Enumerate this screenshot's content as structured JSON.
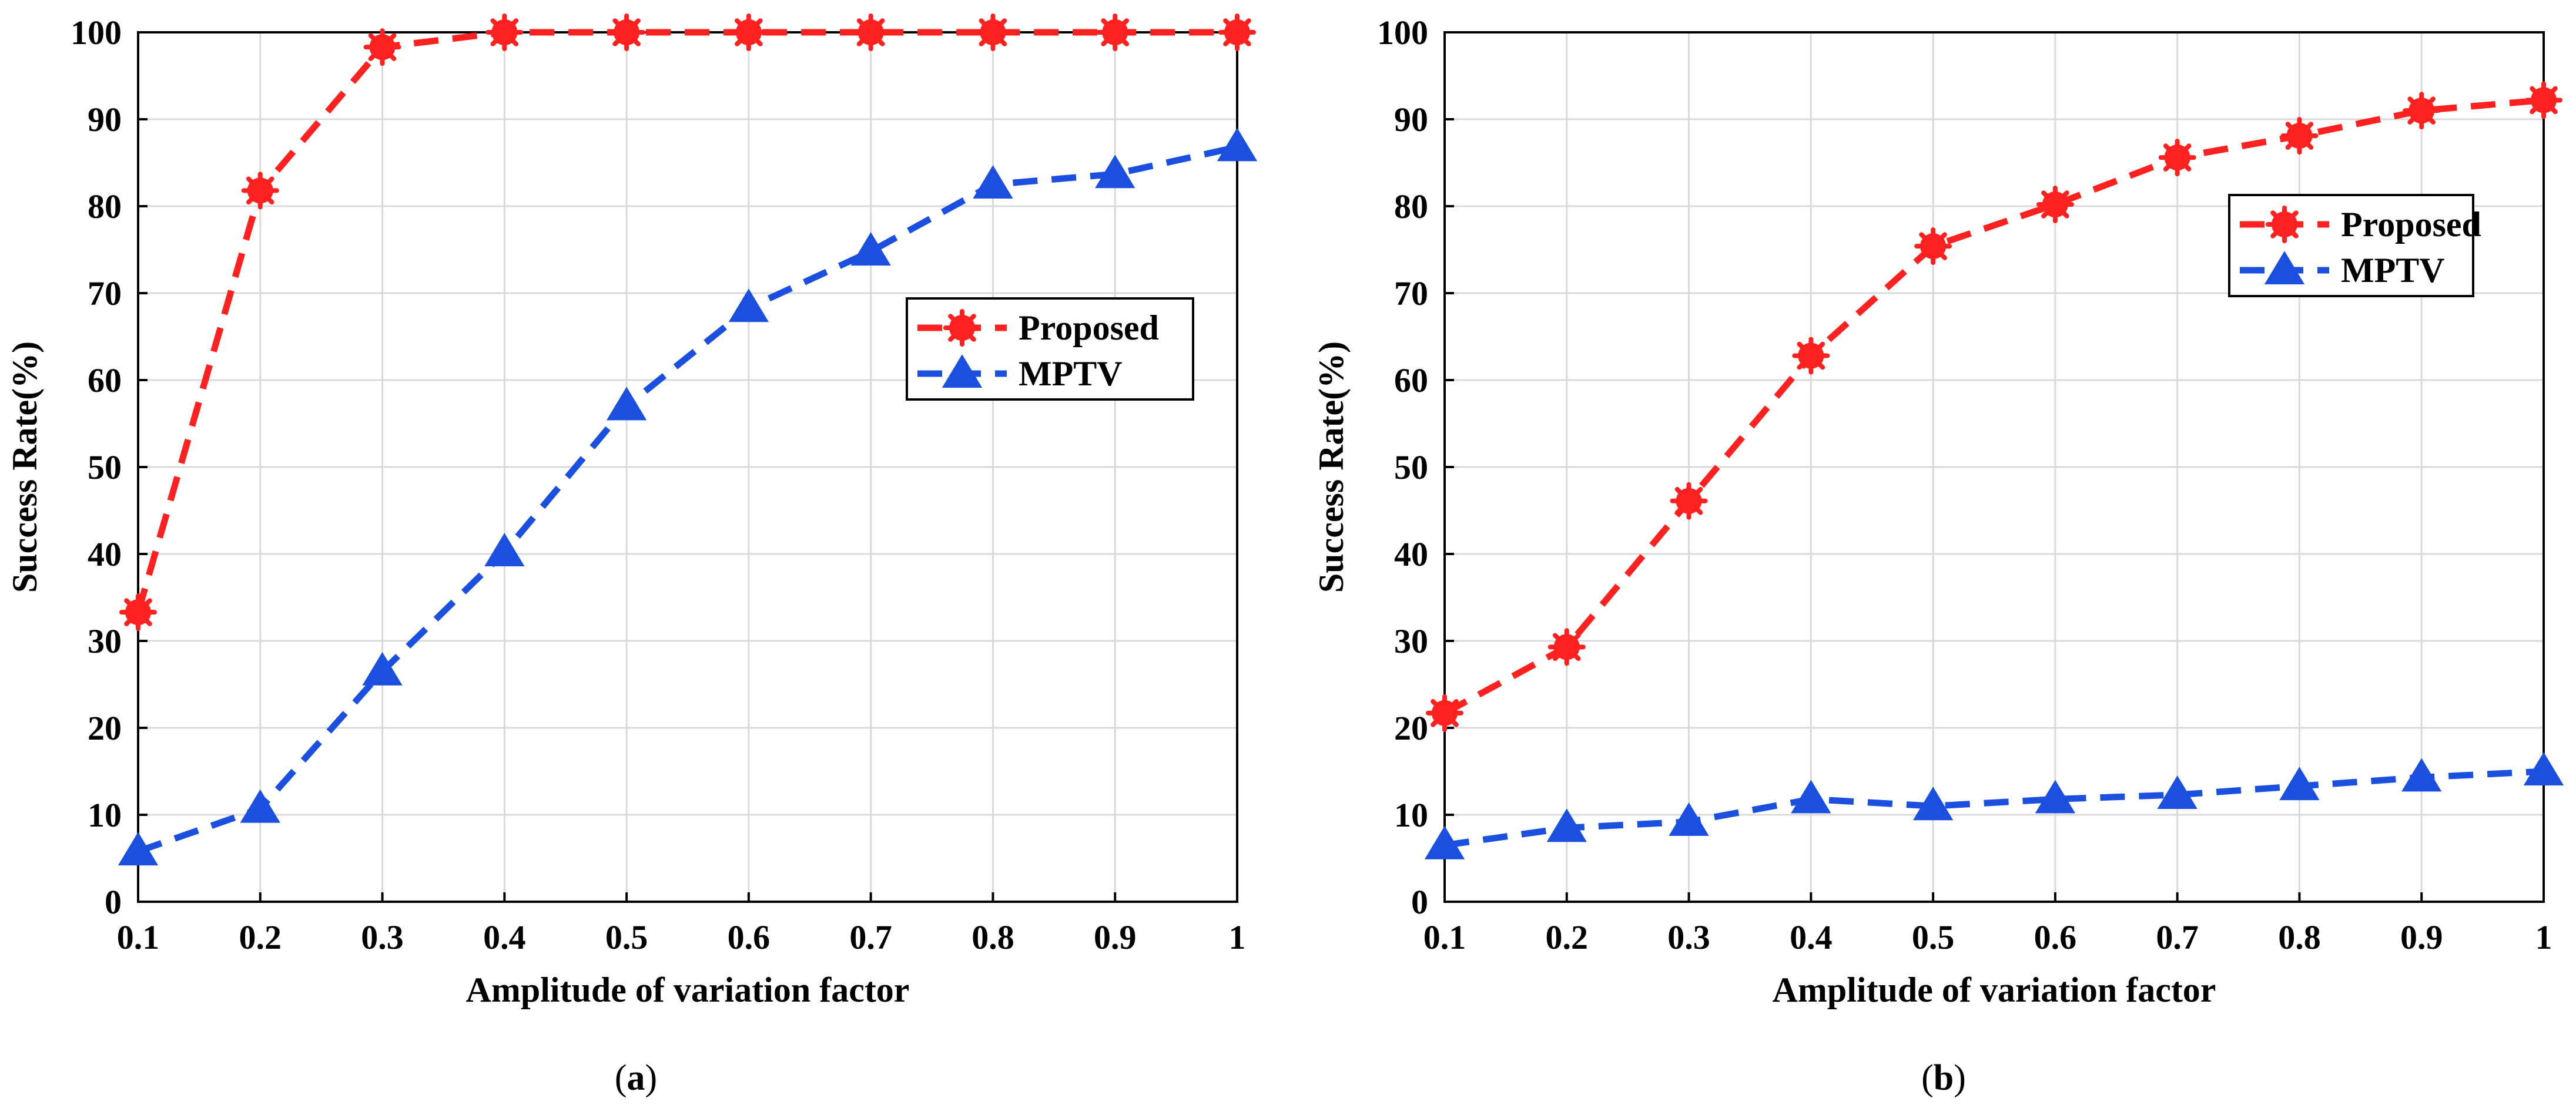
{
  "chart_data": [
    {
      "type": "line",
      "panel_label": "a",
      "caption_open": "(",
      "caption_close": ")",
      "xlabel": "Amplitude of variation factor",
      "ylabel": "Success Rate(%)",
      "x": [
        0.1,
        0.2,
        0.3,
        0.4,
        0.5,
        0.6,
        0.7,
        0.8,
        0.9,
        1
      ],
      "x_tick_labels": [
        "0.1",
        "0.2",
        "0.3",
        "0.4",
        "0.5",
        "0.6",
        "0.7",
        "0.8",
        "0.9",
        "1"
      ],
      "y_ticks": [
        0,
        10,
        20,
        30,
        40,
        50,
        60,
        70,
        80,
        90,
        100
      ],
      "xlim": [
        0.1,
        1
      ],
      "ylim": [
        0,
        100
      ],
      "grid": true,
      "legend_position": "right-middle",
      "series": [
        {
          "name": "Proposed",
          "color": "#ff2020",
          "line_style": "dashed",
          "marker": "asterisk-circle",
          "values": [
            33.3,
            81.8,
            98.3,
            100,
            100,
            100,
            100,
            100,
            100,
            100
          ]
        },
        {
          "name": "MPTV",
          "color": "#1a4fe0",
          "line_style": "dashed",
          "marker": "triangle",
          "values": [
            5.8,
            10.7,
            26.5,
            40.2,
            57.0,
            68.3,
            74.8,
            82.5,
            83.7,
            86.8
          ]
        }
      ]
    },
    {
      "type": "line",
      "panel_label": "b",
      "caption_open": "(",
      "caption_close": ")",
      "xlabel": "Amplitude of variation factor",
      "ylabel": "Success Rate(%)",
      "x": [
        0.1,
        0.2,
        0.3,
        0.4,
        0.5,
        0.6,
        0.7,
        0.8,
        0.9,
        1
      ],
      "x_tick_labels": [
        "0.1",
        "0.2",
        "0.3",
        "0.4",
        "0.5",
        "0.6",
        "0.7",
        "0.8",
        "0.9",
        "1"
      ],
      "y_ticks": [
        0,
        10,
        20,
        30,
        40,
        50,
        60,
        70,
        80,
        90,
        100
      ],
      "xlim": [
        0.1,
        1
      ],
      "ylim": [
        0,
        100
      ],
      "grid": true,
      "legend_position": "top-right",
      "series": [
        {
          "name": "Proposed",
          "color": "#ff2020",
          "line_style": "dashed",
          "marker": "asterisk-circle",
          "values": [
            21.7,
            29.3,
            46.1,
            62.8,
            75.4,
            80.2,
            85.6,
            88.1,
            91.0,
            92.2
          ]
        },
        {
          "name": "MPTV",
          "color": "#1a4fe0",
          "line_style": "dashed",
          "marker": "triangle",
          "values": [
            6.5,
            8.5,
            9.2,
            11.8,
            11.0,
            11.8,
            12.3,
            13.3,
            14.3,
            15.0
          ]
        }
      ]
    }
  ]
}
